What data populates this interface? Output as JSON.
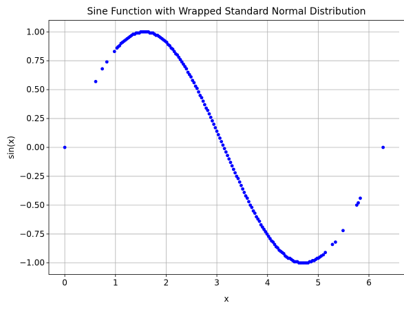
{
  "chart_data": {
    "type": "scatter",
    "title": "Sine Function with Wrapped Standard Normal Distribution",
    "xlabel": "x",
    "ylabel": "sin(x)",
    "xlim": [
      -0.314,
      6.597
    ],
    "ylim": [
      -1.1,
      1.1
    ],
    "xticks": [
      0,
      1,
      2,
      3,
      4,
      5,
      6
    ],
    "yticks": [
      -1.0,
      -0.75,
      -0.5,
      -0.25,
      0.0,
      0.25,
      0.5,
      0.75,
      1.0
    ],
    "xtick_labels": [
      "0",
      "1",
      "2",
      "3",
      "4",
      "5",
      "6"
    ],
    "ytick_labels": [
      "−1.00",
      "−0.75",
      "−0.50",
      "−0.25",
      "0.00",
      "0.25",
      "0.50",
      "0.75",
      "1.00"
    ],
    "grid": true,
    "series": [
      {
        "color": "#0000ff",
        "marker": "circle",
        "x": [
          0.0,
          0.61,
          0.74,
          0.83,
          0.98,
          1.03,
          1.05,
          1.08,
          1.11,
          1.14,
          1.17,
          1.2,
          1.23,
          1.26,
          1.29,
          1.32,
          1.35,
          1.38,
          1.41,
          1.44,
          1.47,
          1.5,
          1.53,
          1.56,
          1.59,
          1.62,
          1.65,
          1.68,
          1.71,
          1.74,
          1.77,
          1.8,
          1.83,
          1.86,
          1.89,
          1.92,
          1.95,
          1.98,
          2.01,
          2.04,
          2.07,
          2.1,
          2.13,
          2.16,
          2.19,
          2.22,
          2.25,
          2.28,
          2.31,
          2.34,
          2.37,
          2.4,
          2.43,
          2.46,
          2.49,
          2.52,
          2.55,
          2.58,
          2.61,
          2.64,
          2.67,
          2.7,
          2.73,
          2.76,
          2.79,
          2.82,
          2.85,
          2.88,
          2.91,
          2.94,
          2.97,
          3.0,
          3.03,
          3.06,
          3.09,
          3.12,
          3.15,
          3.18,
          3.21,
          3.24,
          3.27,
          3.3,
          3.33,
          3.36,
          3.39,
          3.42,
          3.45,
          3.48,
          3.51,
          3.54,
          3.57,
          3.6,
          3.63,
          3.66,
          3.69,
          3.72,
          3.75,
          3.78,
          3.81,
          3.84,
          3.87,
          3.9,
          3.93,
          3.96,
          3.99,
          4.02,
          4.05,
          4.08,
          4.11,
          4.14,
          4.17,
          4.2,
          4.23,
          4.26,
          4.29,
          4.32,
          4.35,
          4.38,
          4.41,
          4.44,
          4.47,
          4.5,
          4.53,
          4.56,
          4.59,
          4.62,
          4.65,
          4.68,
          4.71,
          4.74,
          4.77,
          4.8,
          4.83,
          4.86,
          4.89,
          4.92,
          4.95,
          4.98,
          5.0,
          5.03,
          5.06,
          5.1,
          5.14,
          5.28,
          5.34,
          5.49,
          5.76,
          5.79,
          5.83,
          6.28
        ],
        "y": [
          0.0,
          0.57,
          0.68,
          0.74,
          0.83,
          0.86,
          0.87,
          0.88,
          0.9,
          0.91,
          0.92,
          0.93,
          0.94,
          0.95,
          0.96,
          0.97,
          0.98,
          0.98,
          0.99,
          0.99,
          0.99,
          1.0,
          1.0,
          1.0,
          1.0,
          1.0,
          1.0,
          0.99,
          0.99,
          0.99,
          0.98,
          0.97,
          0.97,
          0.96,
          0.95,
          0.94,
          0.93,
          0.92,
          0.91,
          0.89,
          0.88,
          0.86,
          0.85,
          0.83,
          0.81,
          0.8,
          0.78,
          0.76,
          0.74,
          0.72,
          0.7,
          0.68,
          0.65,
          0.63,
          0.61,
          0.58,
          0.56,
          0.53,
          0.51,
          0.48,
          0.45,
          0.43,
          0.4,
          0.37,
          0.34,
          0.32,
          0.29,
          0.26,
          0.23,
          0.2,
          0.17,
          0.14,
          0.11,
          0.08,
          0.05,
          0.02,
          -0.01,
          -0.04,
          -0.07,
          -0.1,
          -0.13,
          -0.16,
          -0.19,
          -0.22,
          -0.25,
          -0.27,
          -0.3,
          -0.33,
          -0.36,
          -0.39,
          -0.42,
          -0.44,
          -0.47,
          -0.5,
          -0.52,
          -0.55,
          -0.57,
          -0.6,
          -0.62,
          -0.64,
          -0.67,
          -0.69,
          -0.71,
          -0.73,
          -0.75,
          -0.77,
          -0.79,
          -0.81,
          -0.82,
          -0.84,
          -0.86,
          -0.87,
          -0.89,
          -0.9,
          -0.91,
          -0.92,
          -0.94,
          -0.95,
          -0.96,
          -0.96,
          -0.97,
          -0.98,
          -0.99,
          -0.99,
          -0.99,
          -1.0,
          -1.0,
          -1.0,
          -1.0,
          -1.0,
          -1.0,
          -1.0,
          -0.99,
          -0.99,
          -0.98,
          -0.98,
          -0.97,
          -0.96,
          -0.96,
          -0.95,
          -0.94,
          -0.93,
          -0.91,
          -0.84,
          -0.82,
          -0.72,
          -0.5,
          -0.48,
          -0.44,
          0.0
        ]
      }
    ]
  }
}
